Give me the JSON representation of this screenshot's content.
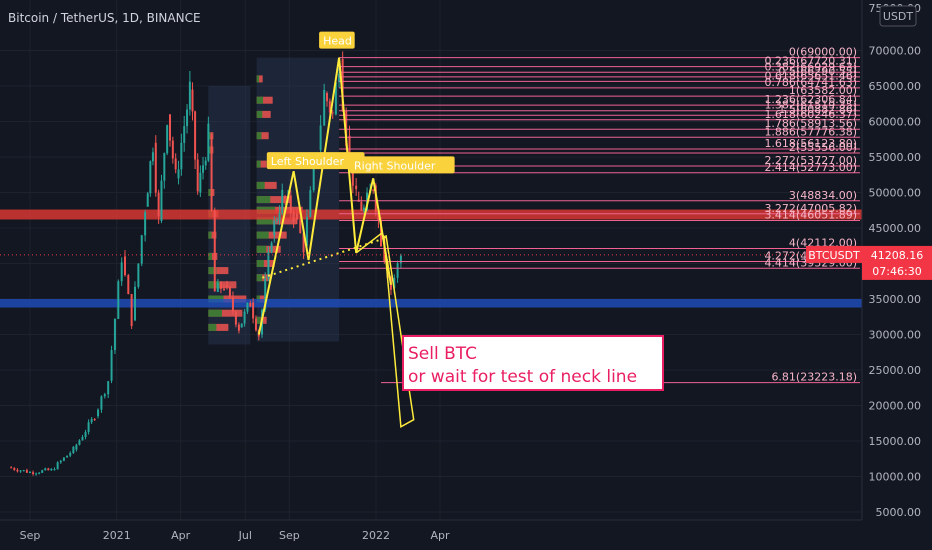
{
  "header": {
    "title": "Bitcoin / TetherUS, 1D, BINANCE",
    "currency_badge": "USDT"
  },
  "colors": {
    "background": "#131722",
    "up": "#26a69a",
    "down": "#ef5350",
    "fib": "#f06292",
    "pattern": "#ffeb3b",
    "support_red": "#e53935",
    "support_blue": "#1e4fbf",
    "price_label": "#f23645"
  },
  "chart_data": {
    "type": "line",
    "title": "Bitcoin / TetherUS, 1D, BINANCE",
    "x_tick_labels": [
      "Sep",
      "2021",
      "Apr",
      "Jul",
      "Sep",
      "2022",
      "Apr"
    ],
    "y_ticks": [
      5000,
      10000,
      15000,
      20000,
      25000,
      30000,
      35000,
      40000,
      45000,
      50000,
      55000,
      60000,
      65000,
      70000
    ],
    "y_tick_labels": [
      "5000.00",
      "10000.00",
      "15000.00",
      "20000.00",
      "25000.00",
      "30000.00",
      "35000.00",
      "40000.00",
      "45000.00",
      "50000.00",
      "55000.00",
      "60000.00",
      "65000.00",
      "70000.00"
    ],
    "ylim": [
      3000,
      76000
    ],
    "top_tick_partial": "75000.00",
    "series": [
      {
        "name": "BTCUSDT",
        "x": [
          "2020-08-01",
          "2020-09-01",
          "2020-10-01",
          "2020-11-01",
          "2020-12-01",
          "2020-12-20",
          "2021-01-08",
          "2021-01-22",
          "2021-02-10",
          "2021-02-21",
          "2021-03-01",
          "2021-03-13",
          "2021-03-25",
          "2021-04-14",
          "2021-04-25",
          "2021-05-10",
          "2021-05-19",
          "2021-06-01",
          "2021-06-22",
          "2021-07-08",
          "2021-07-20",
          "2021-08-07",
          "2021-08-22",
          "2021-09-07",
          "2021-09-21",
          "2021-10-10",
          "2021-10-20",
          "2021-11-01",
          "2021-11-10",
          "2021-11-20",
          "2021-12-04",
          "2021-12-15",
          "2021-12-28",
          "2022-01-08",
          "2022-01-22",
          "2022-02-05"
        ],
        "values": [
          11300,
          10600,
          10900,
          13800,
          18500,
          23500,
          41000,
          32000,
          48000,
          57000,
          46000,
          61000,
          52000,
          64500,
          50000,
          58000,
          36000,
          37000,
          31000,
          34500,
          30000,
          44000,
          49500,
          47000,
          42500,
          56000,
          64000,
          61000,
          68800,
          58000,
          49000,
          47500,
          51000,
          43500,
          36500,
          41200
        ]
      }
    ],
    "current_price": {
      "label": "BTCUSDT",
      "value": 41208.16,
      "value_text": "41208.16",
      "countdown": "07:46:30"
    },
    "fib_levels": [
      {
        "value": 69000.0,
        "text": "0(69000.00)"
      },
      {
        "value": 67720.31,
        "text": "0.236(67720.31)"
      },
      {
        "value": 66929.63,
        "text": "0.382(66929.63)"
      },
      {
        "value": 66290.55,
        "text": "0.5(66290.55)"
      },
      {
        "value": 65651.46,
        "text": "0.618(65651.46)"
      },
      {
        "value": 64741.63,
        "text": "0.786(64741.63)"
      },
      {
        "value": 63582.0,
        "text": "1(63582.00)"
      },
      {
        "value": 62306.84,
        "text": "1.236(62306.84)"
      },
      {
        "value": 61519.35,
        "text": "1.382(61519.35)"
      },
      {
        "value": 60882.86,
        "text": "1.5(60882.86)"
      },
      {
        "value": 60246.37,
        "text": "1.618(60246.37)"
      },
      {
        "value": 58913.56,
        "text": "1.786(58913.56)"
      },
      {
        "value": 57776.38,
        "text": "1.886(57776.38)"
      },
      {
        "value": 56123.8,
        "text": "1.618(56123.80)"
      },
      {
        "value": 55556.0,
        "text": "2(55556.00)"
      },
      {
        "value": 53727.0,
        "text": "2.272(53727.00)"
      },
      {
        "value": 52773.0,
        "text": "2.414(52773.00)"
      },
      {
        "value": 48834.0,
        "text": "3(48834.00)"
      },
      {
        "value": 47005.82,
        "text": "3.272(47005.82)"
      },
      {
        "value": 46051.89,
        "text": "3.414(46051.89)"
      },
      {
        "value": 42112.0,
        "text": "4(42112.00)"
      },
      {
        "value": 40283.0,
        "text": "4.272(40283.00)"
      },
      {
        "value": 39329.0,
        "text": "4.414(39329.00)"
      },
      {
        "value": 23223.18,
        "text": "6.81(23223.18)"
      }
    ],
    "support_zones": [
      {
        "name": "red-zone",
        "low": 46200,
        "high": 47600
      },
      {
        "name": "blue-zone",
        "low": 33800,
        "high": 35000
      }
    ],
    "pattern_labels": [
      "Head",
      "Left Shoulder",
      "Right Shoulder"
    ],
    "annotation": {
      "line1": "Sell BTC",
      "line2": "or wait for test of neck line"
    }
  }
}
